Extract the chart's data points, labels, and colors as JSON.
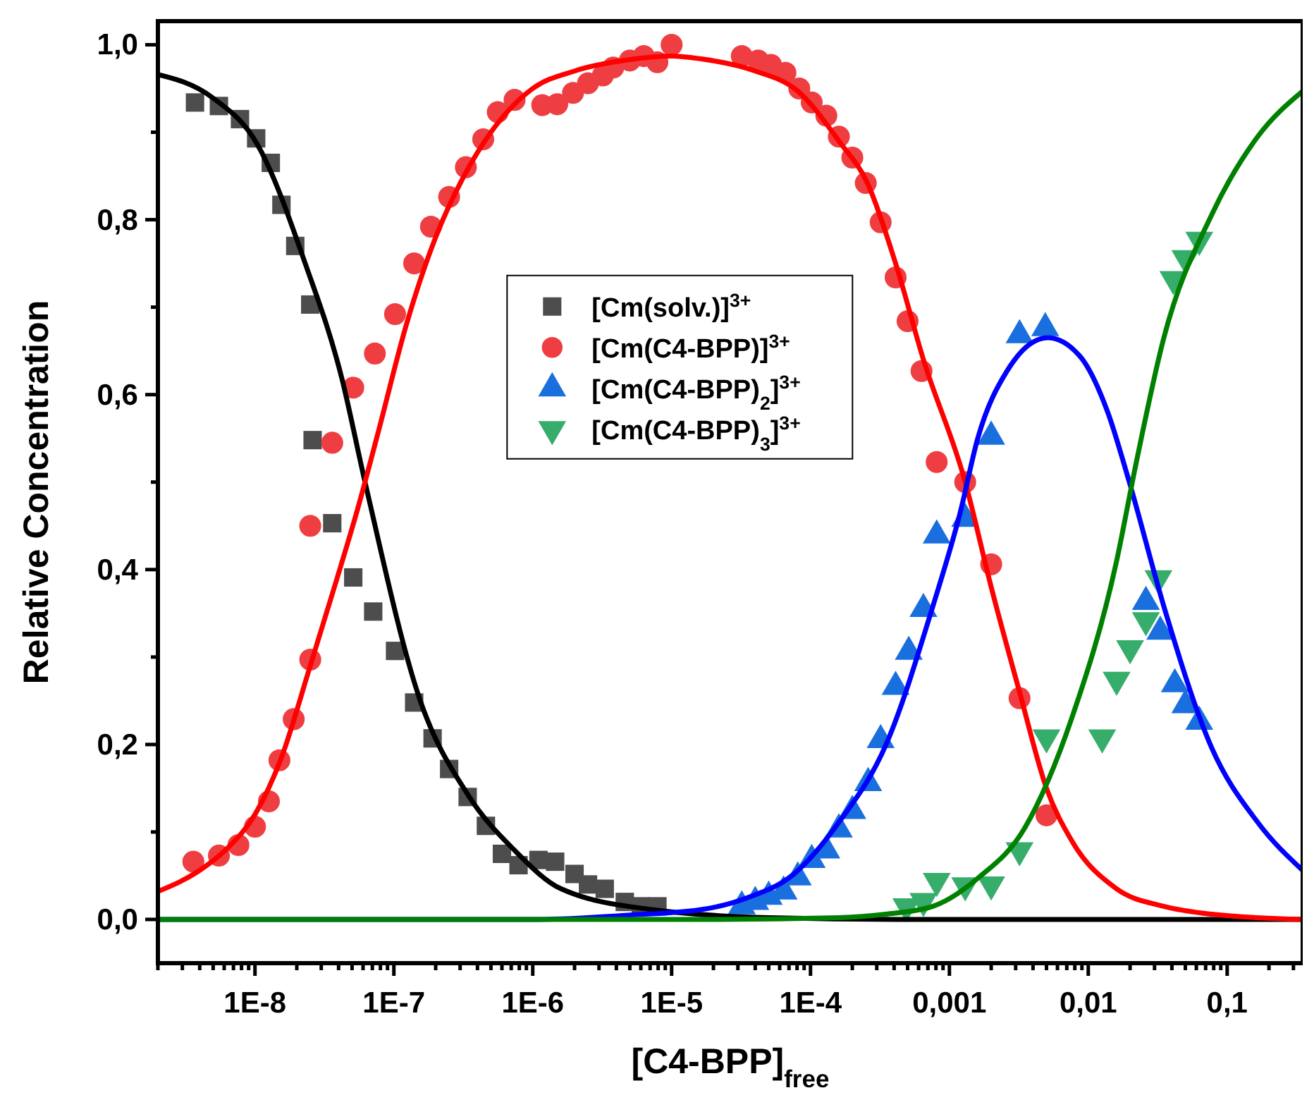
{
  "chart_data": {
    "type": "scatter",
    "xlabel": "[C4-BPP]$_{free}$",
    "ylabel": "Relative Concentration",
    "log": "x",
    "legend": "top",
    "xlim": [
      2e-09,
      0.35
    ],
    "ylim": [
      -0.05,
      1.027
    ],
    "xticks": [
      {
        "value": 2e-09,
        "label": null
      },
      {
        "value": 3e-09,
        "label": null
      },
      {
        "value": 4e-09,
        "label": null
      },
      {
        "value": 5e-09,
        "label": null
      },
      {
        "value": 6e-09,
        "label": null
      },
      {
        "value": 7e-09,
        "label": null
      },
      {
        "value": 8e-09,
        "label": null
      },
      {
        "value": 9e-09,
        "label": null
      },
      {
        "value": 1e-08,
        "label": "1E-8"
      },
      {
        "value": 2e-08,
        "label": null
      },
      {
        "value": 3e-08,
        "label": null
      },
      {
        "value": 4e-08,
        "label": null
      },
      {
        "value": 5e-08,
        "label": null
      },
      {
        "value": 6e-08,
        "label": null
      },
      {
        "value": 7e-08,
        "label": null
      },
      {
        "value": 8e-08,
        "label": null
      },
      {
        "value": 9e-08,
        "label": null
      },
      {
        "value": 1e-07,
        "label": "1E-7"
      },
      {
        "value": 2e-07,
        "label": null
      },
      {
        "value": 3e-07,
        "label": null
      },
      {
        "value": 4e-07,
        "label": null
      },
      {
        "value": 5e-07,
        "label": null
      },
      {
        "value": 6e-07,
        "label": null
      },
      {
        "value": 7e-07,
        "label": null
      },
      {
        "value": 8e-07,
        "label": null
      },
      {
        "value": 9e-07,
        "label": null
      },
      {
        "value": 1e-06,
        "label": "1E-6"
      },
      {
        "value": 2e-06,
        "label": null
      },
      {
        "value": 3e-06,
        "label": null
      },
      {
        "value": 4e-06,
        "label": null
      },
      {
        "value": 5e-06,
        "label": null
      },
      {
        "value": 6e-06,
        "label": null
      },
      {
        "value": 7e-06,
        "label": null
      },
      {
        "value": 8e-06,
        "label": null
      },
      {
        "value": 9e-06,
        "label": null
      },
      {
        "value": 1e-05,
        "label": "1E-5"
      },
      {
        "value": 2e-05,
        "label": null
      },
      {
        "value": 3e-05,
        "label": null
      },
      {
        "value": 4e-05,
        "label": null
      },
      {
        "value": 5e-05,
        "label": null
      },
      {
        "value": 6e-05,
        "label": null
      },
      {
        "value": 7e-05,
        "label": null
      },
      {
        "value": 8e-05,
        "label": null
      },
      {
        "value": 9e-05,
        "label": null
      },
      {
        "value": 0.0001,
        "label": "1E-4"
      },
      {
        "value": 0.0002,
        "label": null
      },
      {
        "value": 0.0003,
        "label": null
      },
      {
        "value": 0.0004,
        "label": null
      },
      {
        "value": 0.0005,
        "label": null
      },
      {
        "value": 0.0006,
        "label": null
      },
      {
        "value": 0.0007,
        "label": null
      },
      {
        "value": 0.0008,
        "label": null
      },
      {
        "value": 0.0009,
        "label": null
      },
      {
        "value": 0.001,
        "label": "0,001"
      },
      {
        "value": 0.002,
        "label": null
      },
      {
        "value": 0.003,
        "label": null
      },
      {
        "value": 0.004,
        "label": null
      },
      {
        "value": 0.005,
        "label": null
      },
      {
        "value": 0.006,
        "label": null
      },
      {
        "value": 0.007,
        "label": null
      },
      {
        "value": 0.008,
        "label": null
      },
      {
        "value": 0.009,
        "label": null
      },
      {
        "value": 0.01,
        "label": "0,01"
      },
      {
        "value": 0.02,
        "label": null
      },
      {
        "value": 0.03,
        "label": null
      },
      {
        "value": 0.04,
        "label": null
      },
      {
        "value": 0.05,
        "label": null
      },
      {
        "value": 0.06,
        "label": null
      },
      {
        "value": 0.07,
        "label": null
      },
      {
        "value": 0.08,
        "label": null
      },
      {
        "value": 0.09,
        "label": null
      },
      {
        "value": 0.1,
        "label": "0,1"
      },
      {
        "value": 0.2,
        "label": null
      },
      {
        "value": 0.3,
        "label": null
      }
    ],
    "yticks": [
      {
        "value": 0,
        "label": "0,0"
      },
      {
        "value": 0.1,
        "label": null
      },
      {
        "value": 0.2,
        "label": "0,2"
      },
      {
        "value": 0.3,
        "label": null
      },
      {
        "value": 0.4,
        "label": "0,4"
      },
      {
        "value": 0.5,
        "label": null
      },
      {
        "value": 0.6,
        "label": "0,6"
      },
      {
        "value": 0.7,
        "label": null
      },
      {
        "value": 0.8,
        "label": "0,8"
      },
      {
        "value": 0.9,
        "label": null
      },
      {
        "value": 1.0,
        "label": "1,0"
      }
    ],
    "series": [
      {
        "name": "[Cm(solv.)]$^{3+}$",
        "marker": "square",
        "color": "#4d4d4d",
        "x": [
          3.7e-09,
          5.5e-09,
          7.8e-09,
          1.02e-08,
          1.3e-08,
          1.55e-08,
          1.95e-08,
          2.5e-08,
          2.6e-08,
          3.6e-08,
          5.1e-08,
          7.1e-08,
          1.02e-07,
          1.4e-07,
          1.9e-07,
          2.5e-07,
          3.4e-07,
          4.6e-07,
          6e-07,
          7.9e-07,
          1.1e-06,
          1.45e-06,
          2e-06,
          2.5e-06,
          3.3e-06,
          4.6e-06,
          6e-06,
          7.9e-06
        ],
        "values": [
          0.934,
          0.93,
          0.915,
          0.893,
          0.865,
          0.817,
          0.77,
          0.703,
          0.548,
          0.453,
          0.391,
          0.352,
          0.307,
          0.248,
          0.207,
          0.172,
          0.14,
          0.107,
          0.075,
          0.062,
          0.068,
          0.066,
          0.052,
          0.04,
          0.035,
          0.02,
          0.015,
          0.015
        ]
      },
      {
        "name": "[Cm(C4-BPP)]$^{3+}$",
        "marker": "circle",
        "color": "#ef3e42",
        "x": [
          3.6e-09,
          5.5e-09,
          7.6e-09,
          1e-08,
          1.26e-08,
          1.5e-08,
          1.9e-08,
          2.5e-08,
          2.5e-08,
          3.6e-08,
          5.1e-08,
          7.3e-08,
          1.02e-07,
          1.4e-07,
          1.85e-07,
          2.5e-07,
          3.3e-07,
          4.4e-07,
          5.6e-07,
          7.4e-07,
          1.17e-06,
          1.5e-06,
          1.95e-06,
          2.5e-06,
          3.2e-06,
          3.8e-06,
          5e-06,
          6.3e-06,
          7.9e-06,
          1e-05,
          3.2e-05,
          4.2e-05,
          5.2e-05,
          6.6e-05,
          8.3e-05,
          0.000102,
          0.00013,
          0.00016,
          0.0002,
          0.00025,
          0.00032,
          0.00041,
          0.0005,
          0.00063,
          0.00081,
          0.0013,
          0.002,
          0.0032,
          0.005
        ],
        "values": [
          0.066,
          0.073,
          0.085,
          0.106,
          0.135,
          0.182,
          0.229,
          0.297,
          0.45,
          0.545,
          0.608,
          0.647,
          0.692,
          0.75,
          0.792,
          0.826,
          0.86,
          0.892,
          0.923,
          0.937,
          0.931,
          0.932,
          0.945,
          0.956,
          0.965,
          0.974,
          0.982,
          0.987,
          0.98,
          1.0,
          0.987,
          0.982,
          0.977,
          0.968,
          0.95,
          0.934,
          0.919,
          0.895,
          0.871,
          0.842,
          0.797,
          0.734,
          0.684,
          0.627,
          0.523,
          0.5,
          0.406,
          0.253,
          0.119
        ]
      },
      {
        "name": "[Cm(C4-BPP)$_{2}$]$^{3+}$",
        "marker": "triangle",
        "color": "#1a6fdf",
        "x": [
          3.2e-05,
          4e-05,
          5e-05,
          6.4e-05,
          8.1e-05,
          0.000102,
          0.00013,
          0.00016,
          0.0002,
          0.00026,
          0.00032,
          0.00041,
          0.00051,
          0.00065,
          0.00081,
          0.0013,
          0.002,
          0.0032,
          0.0049,
          0.026,
          0.033,
          0.042,
          0.05,
          0.063
        ],
        "values": [
          0.015,
          0.02,
          0.026,
          0.032,
          0.048,
          0.068,
          0.079,
          0.103,
          0.124,
          0.156,
          0.205,
          0.266,
          0.306,
          0.355,
          0.439,
          0.458,
          0.552,
          0.668,
          0.676,
          0.363,
          0.329,
          0.269,
          0.245,
          0.226
        ]
      },
      {
        "name": "[Cm(C4-BPP)$_{3}$]$^{3+}$",
        "marker": "triangle-down",
        "color": "#37ad6b",
        "x": [
          0.00049,
          0.00065,
          0.00081,
          0.0013,
          0.002,
          0.0032,
          0.005,
          0.0126,
          0.016,
          0.02,
          0.026,
          0.032,
          0.041,
          0.05,
          0.063
        ],
        "values": [
          0.015,
          0.021,
          0.044,
          0.039,
          0.04,
          0.079,
          0.208,
          0.208,
          0.274,
          0.31,
          0.342,
          0.39,
          0.732,
          0.756,
          0.777
        ]
      },
      {
        "type": "line",
        "color": "#000000",
        "x": [
          2e-09,
          4.9e-09,
          1.05e-08,
          2.3e-08,
          4.2e-08,
          6.2e-08,
          1.55e-07,
          3.4e-07,
          7.4e-07,
          1.6e-06,
          7.4e-06,
          5e-05,
          0.00051,
          0.35
        ],
        "values": [
          0.966,
          0.94,
          0.885,
          0.75,
          0.62,
          0.5,
          0.25,
          0.143,
          0.079,
          0.035,
          0.011,
          0.002,
          0,
          0
        ]
      },
      {
        "type": "line",
        "color": "#ff0000",
        "x": [
          2e-09,
          3.9e-09,
          6.2e-09,
          1e-08,
          1.55e-08,
          2.5e-08,
          3.9e-08,
          5.5e-08,
          7.8e-08,
          1.23e-07,
          2e-07,
          3.2e-07,
          5e-07,
          1e-06,
          2e-06,
          5e-06,
          1e-05,
          1.6e-05,
          4e-05,
          8.1e-05,
          0.00016,
          0.00026,
          0.00041,
          0.00065,
          0.0013,
          0.002,
          0.0032,
          0.005,
          0.0076,
          0.016,
          0.035,
          0.077,
          0.35
        ],
        "values": [
          0.032,
          0.055,
          0.08,
          0.12,
          0.185,
          0.29,
          0.39,
          0.47,
          0.56,
          0.68,
          0.78,
          0.85,
          0.9,
          0.95,
          0.97,
          0.983,
          0.987,
          0.984,
          0.97,
          0.947,
          0.89,
          0.84,
          0.75,
          0.64,
          0.5,
          0.38,
          0.26,
          0.15,
          0.09,
          0.035,
          0.015,
          0.006,
          0
        ]
      },
      {
        "type": "line",
        "color": "#0000ff",
        "x": [
          2e-09,
          1e-06,
          5e-06,
          1.6e-05,
          3.4e-05,
          7.6e-05,
          0.00016,
          0.00035,
          0.00076,
          0.0012,
          0.0016,
          0.0026,
          0.0051,
          0.0087,
          0.0138,
          0.0195,
          0.035,
          0.077,
          0.166,
          0.35
        ],
        "values": [
          0,
          0,
          0.005,
          0.011,
          0.024,
          0.052,
          0.111,
          0.2,
          0.358,
          0.466,
          0.55,
          0.627,
          0.665,
          0.644,
          0.58,
          0.503,
          0.358,
          0.197,
          0.111,
          0.056
        ]
      },
      {
        "type": "line",
        "color": "#008000",
        "x": [
          2e-09,
          1.6e-05,
          0.00016,
          0.00035,
          0.00076,
          0.0016,
          0.0035,
          0.0076,
          0.016,
          0.022,
          0.035,
          0.077,
          0.166,
          0.35
        ],
        "values": [
          0,
          0,
          0.002,
          0.006,
          0.015,
          0.047,
          0.105,
          0.23,
          0.41,
          0.52,
          0.665,
          0.805,
          0.895,
          0.947
        ]
      }
    ]
  }
}
